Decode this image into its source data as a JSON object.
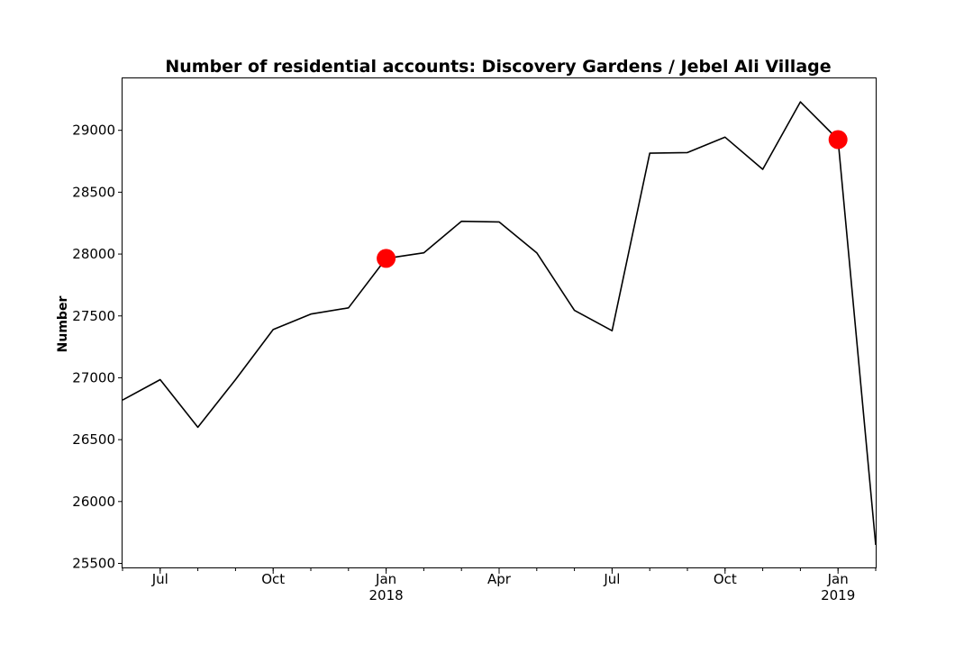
{
  "chart_data": {
    "type": "line",
    "title": "Number of residential accounts: Discovery Gardens / Jebel Ali Village",
    "xlabel": "",
    "ylabel": "Number",
    "x": [
      "2017-06",
      "2017-07",
      "2017-08",
      "2017-09",
      "2017-10",
      "2017-11",
      "2017-12",
      "2018-01",
      "2018-02",
      "2018-03",
      "2018-04",
      "2018-05",
      "2018-06",
      "2018-07",
      "2018-08",
      "2018-09",
      "2018-10",
      "2018-11",
      "2018-12",
      "2019-01",
      "2019-02"
    ],
    "series": [
      {
        "values": [
          26820,
          26985,
          26600,
          26985,
          27390,
          27515,
          27565,
          27965,
          28010,
          28265,
          28260,
          28010,
          27545,
          27380,
          28815,
          28820,
          28945,
          28685,
          29230,
          28925,
          25650
        ],
        "color": "#000000"
      }
    ],
    "highlight_points": [
      {
        "x": "2018-01",
        "y": 27965,
        "color": "#ff0000"
      },
      {
        "x": "2019-01",
        "y": 28925,
        "color": "#ff0000"
      }
    ],
    "xlim": [
      "2017-06",
      "2019-02"
    ],
    "ylim": [
      25460,
      29420
    ],
    "yticks": [
      25500,
      26000,
      26500,
      27000,
      27500,
      28000,
      28500,
      29000
    ],
    "xticks": [
      {
        "x": "2017-07",
        "label": "Jul",
        "sublabel": ""
      },
      {
        "x": "2017-10",
        "label": "Oct",
        "sublabel": ""
      },
      {
        "x": "2018-01",
        "label": "Jan",
        "sublabel": "2018"
      },
      {
        "x": "2018-04",
        "label": "Apr",
        "sublabel": ""
      },
      {
        "x": "2018-07",
        "label": "Jul",
        "sublabel": ""
      },
      {
        "x": "2018-10",
        "label": "Oct",
        "sublabel": ""
      },
      {
        "x": "2019-01",
        "label": "Jan",
        "sublabel": "2019"
      }
    ],
    "grid": false,
    "legend": "none"
  }
}
